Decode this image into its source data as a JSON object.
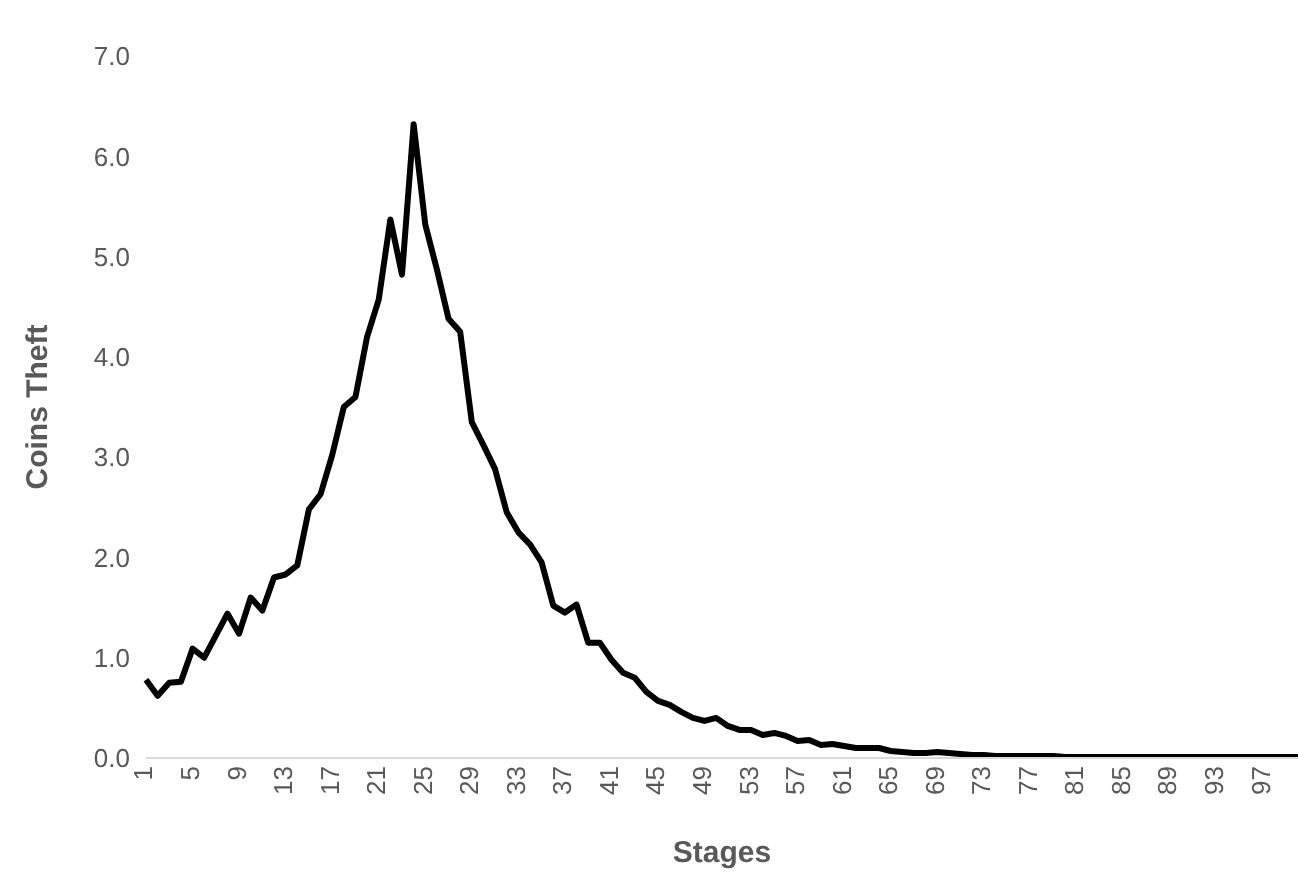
{
  "chart_data": {
    "type": "line",
    "xlabel": "Stages",
    "ylabel": "Coins Theft",
    "categories": [
      "1",
      null,
      null,
      null,
      "5",
      null,
      null,
      null,
      "9",
      null,
      null,
      null,
      "13",
      null,
      null,
      null,
      "17",
      null,
      null,
      null,
      "21",
      null,
      null,
      null,
      "25",
      null,
      null,
      null,
      "29",
      null,
      null,
      null,
      "33",
      null,
      null,
      null,
      "37",
      null,
      null,
      null,
      "41",
      null,
      null,
      null,
      "45",
      null,
      null,
      null,
      "49",
      null,
      null,
      null,
      "53",
      null,
      null,
      null,
      "57",
      null,
      null,
      null,
      "61",
      null,
      null,
      null,
      "65",
      null,
      null,
      null,
      "69",
      null,
      null,
      null,
      "73",
      null,
      null,
      null,
      "77",
      null,
      null,
      null,
      "81",
      null,
      null,
      null,
      "85",
      null,
      null,
      null,
      "89",
      null,
      null,
      null,
      "93",
      null,
      null,
      null,
      "97",
      null,
      null,
      null
    ],
    "series": [
      {
        "color": "#000000",
        "values": [
          0.78,
          0.62,
          0.75,
          0.76,
          1.09,
          1.0,
          1.22,
          1.44,
          1.24,
          1.6,
          1.47,
          1.8,
          1.83,
          1.92,
          2.48,
          2.63,
          3.02,
          3.5,
          3.6,
          4.2,
          4.57,
          5.37,
          4.82,
          6.32,
          5.32,
          4.87,
          4.38,
          4.25,
          3.35,
          3.12,
          2.88,
          2.45,
          2.25,
          2.13,
          1.95,
          1.52,
          1.45,
          1.53,
          1.15,
          1.15,
          0.98,
          0.85,
          0.8,
          0.66,
          0.57,
          0.53,
          0.46,
          0.4,
          0.37,
          0.4,
          0.32,
          0.28,
          0.28,
          0.23,
          0.25,
          0.22,
          0.17,
          0.18,
          0.13,
          0.14,
          0.12,
          0.1,
          0.1,
          0.1,
          0.07,
          0.06,
          0.05,
          0.05,
          0.06,
          0.05,
          0.04,
          0.03,
          0.03,
          0.02,
          0.02,
          0.02,
          0.02,
          0.02,
          0.02,
          0.01,
          0.01,
          0.01,
          0.01,
          0.01,
          0.01,
          0.01,
          0.01,
          0.01,
          0.01,
          0.01,
          0.01,
          0.01,
          0.01,
          0.01,
          0.01,
          0.01,
          0.01,
          0.01,
          0.01,
          0.01
        ]
      }
    ],
    "ylim": [
      0,
      7
    ],
    "yticks": [
      {
        "value": 0,
        "label": "0.0"
      },
      {
        "value": 1,
        "label": "1.0"
      },
      {
        "value": 2,
        "label": "2.0"
      },
      {
        "value": 3,
        "label": "3.0"
      },
      {
        "value": 4,
        "label": "4.0"
      },
      {
        "value": 5,
        "label": "5.0"
      },
      {
        "value": 6,
        "label": "6.0"
      },
      {
        "value": 7,
        "label": "7.0"
      }
    ],
    "grid": false,
    "marker": "none",
    "line_style": "solid"
  }
}
